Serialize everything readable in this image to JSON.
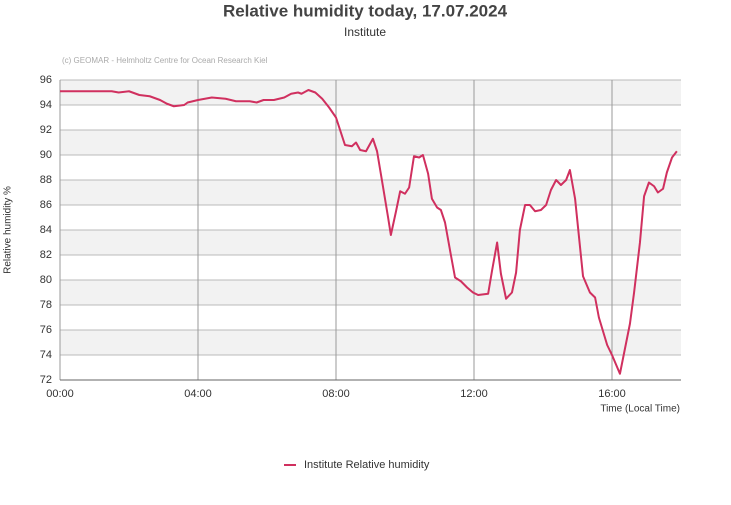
{
  "chart_data": {
    "type": "line",
    "title": "Relative humidity today, 17.07.2024",
    "subtitle": "Institute",
    "credit": "(c) GEOMAR - Helmholtz Centre for Ocean Research Kiel",
    "x_label": "Time (Local Time)",
    "y_label": "Relative humidity %",
    "xlim": [
      0,
      18
    ],
    "xticks": [
      {
        "value": 0,
        "label": "00:00"
      },
      {
        "value": 4,
        "label": "04:00"
      },
      {
        "value": 8,
        "label": "08:00"
      },
      {
        "value": 12,
        "label": "12:00"
      },
      {
        "value": 16,
        "label": "16:00"
      }
    ],
    "ylim": [
      72,
      96
    ],
    "yticks": [
      72,
      74,
      76,
      78,
      80,
      82,
      84,
      86,
      88,
      90,
      92,
      94,
      96
    ],
    "grid": true,
    "legend": "bottom",
    "series": [
      {
        "name": "Institute Relative humidity",
        "color": "#d0305f",
        "x": [
          0,
          1.5,
          1.7,
          2.0,
          2.3,
          2.6,
          2.9,
          3.1,
          3.3,
          3.6,
          3.7,
          4.0,
          4.4,
          4.8,
          5.1,
          5.5,
          5.7,
          5.9,
          6.2,
          6.5,
          6.7,
          6.9,
          7.0,
          7.2,
          7.4,
          7.6,
          7.8,
          8.0,
          8.26,
          8.46,
          8.58,
          8.7,
          8.87,
          9.07,
          9.19,
          9.36,
          9.51,
          9.59,
          9.74,
          9.86,
          10.0,
          10.12,
          10.26,
          10.41,
          10.52,
          10.67,
          10.78,
          10.93,
          11.04,
          11.16,
          11.33,
          11.45,
          11.62,
          11.8,
          11.97,
          12.12,
          12.41,
          12.52,
          12.67,
          12.78,
          12.93,
          13.1,
          13.22,
          13.33,
          13.48,
          13.62,
          13.77,
          13.94,
          14.09,
          14.23,
          14.38,
          14.52,
          14.67,
          14.78,
          14.93,
          15.16,
          15.36,
          15.51,
          15.62,
          15.86,
          16.0,
          16.23,
          16.52,
          16.64,
          16.81,
          16.93,
          17.07,
          17.22,
          17.33,
          17.48,
          17.59,
          17.74,
          17.88
        ],
        "values": [
          95.1,
          95.1,
          95.0,
          95.1,
          94.8,
          94.7,
          94.4,
          94.1,
          93.9,
          94.0,
          94.2,
          94.4,
          94.6,
          94.5,
          94.3,
          94.3,
          94.2,
          94.4,
          94.4,
          94.6,
          94.9,
          95.0,
          94.9,
          95.2,
          95.0,
          94.5,
          93.8,
          93.0,
          90.8,
          90.7,
          91.0,
          90.4,
          90.3,
          91.3,
          90.3,
          87.5,
          85.0,
          83.6,
          85.5,
          87.1,
          86.9,
          87.4,
          89.9,
          89.8,
          90.0,
          88.5,
          86.5,
          85.8,
          85.6,
          84.6,
          82.0,
          80.2,
          79.9,
          79.4,
          79.0,
          78.8,
          78.9,
          80.7,
          83.0,
          80.5,
          78.5,
          79.0,
          80.6,
          84.0,
          86.0,
          86.0,
          85.5,
          85.6,
          86.0,
          87.2,
          88.0,
          87.6,
          88.0,
          88.8,
          86.5,
          80.3,
          79.0,
          78.6,
          77.0,
          74.8,
          74.0,
          72.5,
          76.5,
          79.0,
          83.0,
          86.7,
          87.8,
          87.5,
          87.0,
          87.3,
          88.6,
          89.8,
          90.3
        ]
      }
    ]
  }
}
